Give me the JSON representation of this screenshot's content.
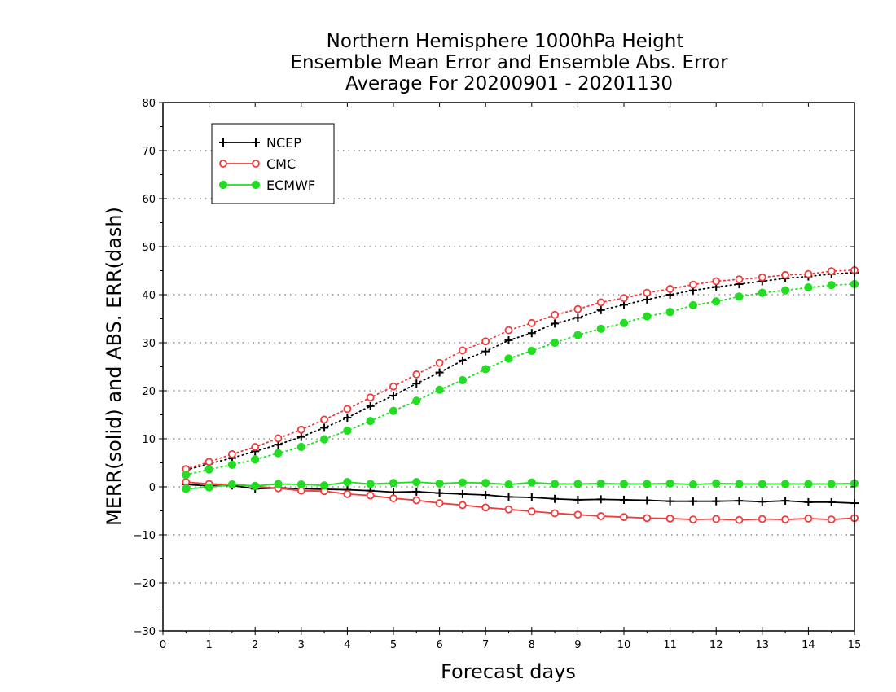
{
  "chart_data": {
    "type": "line",
    "title_lines": [
      "Northern Hemisphere 1000hPa Height",
      "Ensemble Mean Error and Ensemble Abs. Error",
      "Average For 20200901 - 20201130"
    ],
    "xlabel": "Forecast days",
    "ylabel": "MERR(solid) and ABS. ERR(dash)",
    "xlim": [
      0,
      15
    ],
    "ylim": [
      -30,
      80
    ],
    "xticks": [
      0,
      1,
      2,
      3,
      4,
      5,
      6,
      7,
      8,
      9,
      10,
      11,
      12,
      13,
      14,
      15
    ],
    "yticks": [
      -30,
      -20,
      -10,
      0,
      10,
      20,
      30,
      40,
      50,
      60,
      70,
      80
    ],
    "xtick_labels": [
      "0",
      "1",
      "2",
      "3",
      "4",
      "5",
      "6",
      "7",
      "8",
      "9",
      "10",
      "11",
      "12",
      "13",
      "14",
      "15"
    ],
    "ytick_labels": [
      "−30",
      "−20",
      "−10",
      "0",
      "10",
      "20",
      "30",
      "40",
      "50",
      "60",
      "70",
      "80"
    ],
    "grid": "horizontal dotted",
    "legend_position": "top-left",
    "x": [
      0.5,
      1.0,
      1.5,
      2.0,
      2.5,
      3.0,
      3.5,
      4.0,
      4.5,
      5.0,
      5.5,
      6.0,
      6.5,
      7.0,
      7.5,
      8.0,
      8.5,
      9.0,
      9.5,
      10.0,
      10.5,
      11.0,
      11.5,
      12.0,
      12.5,
      13.0,
      13.5,
      14.0,
      14.5,
      15.0
    ],
    "series": [
      {
        "name": "NCEP",
        "color": "#000000",
        "marker": "plus",
        "abs_error": [
          3.5,
          4.8,
          6.0,
          7.4,
          8.8,
          10.4,
          12.3,
          14.4,
          16.8,
          19.0,
          21.5,
          23.8,
          26.3,
          28.2,
          30.5,
          32.0,
          34.0,
          35.2,
          36.8,
          37.9,
          39.0,
          40.0,
          40.9,
          41.6,
          42.2,
          42.8,
          43.4,
          43.8,
          44.3,
          44.6
        ],
        "mean_error": [
          0.5,
          0.2,
          0.3,
          -0.4,
          -0.2,
          -0.4,
          -0.5,
          -0.6,
          -0.8,
          -1.1,
          -1.0,
          -1.3,
          -1.5,
          -1.7,
          -2.1,
          -2.2,
          -2.5,
          -2.7,
          -2.6,
          -2.7,
          -2.8,
          -3.0,
          -3.0,
          -3.0,
          -2.9,
          -3.1,
          -2.9,
          -3.2,
          -3.2,
          -3.4
        ]
      },
      {
        "name": "CMC",
        "color": "#ee3b3b",
        "marker": "open-circle",
        "abs_error": [
          3.7,
          5.2,
          6.8,
          8.3,
          10.1,
          11.9,
          14.0,
          16.2,
          18.6,
          20.9,
          23.4,
          25.8,
          28.4,
          30.3,
          32.6,
          34.1,
          35.8,
          37.0,
          38.4,
          39.3,
          40.4,
          41.2,
          42.1,
          42.8,
          43.2,
          43.6,
          44.1,
          44.3,
          44.9,
          45.1
        ],
        "mean_error": [
          1.0,
          0.6,
          0.5,
          0.1,
          -0.3,
          -0.8,
          -0.9,
          -1.5,
          -1.8,
          -2.4,
          -2.8,
          -3.4,
          -3.8,
          -4.3,
          -4.7,
          -5.1,
          -5.5,
          -5.8,
          -6.1,
          -6.3,
          -6.5,
          -6.6,
          -6.8,
          -6.7,
          -6.9,
          -6.7,
          -6.8,
          -6.6,
          -6.8,
          -6.5
        ]
      },
      {
        "name": "ECMWF",
        "color": "#22dd22",
        "marker": "filled-circle",
        "abs_error": [
          2.5,
          3.6,
          4.6,
          5.7,
          7.0,
          8.3,
          9.9,
          11.7,
          13.7,
          15.8,
          17.9,
          20.2,
          22.2,
          24.5,
          26.7,
          28.3,
          30.0,
          31.6,
          32.9,
          34.1,
          35.5,
          36.4,
          37.8,
          38.6,
          39.6,
          40.4,
          40.9,
          41.5,
          42.0,
          42.2
        ],
        "mean_error": [
          -0.4,
          -0.1,
          0.5,
          0.2,
          0.6,
          0.5,
          0.3,
          1.0,
          0.6,
          0.8,
          1.0,
          0.7,
          0.9,
          0.8,
          0.5,
          0.9,
          0.6,
          0.6,
          0.7,
          0.6,
          0.6,
          0.7,
          0.5,
          0.7,
          0.6,
          0.6,
          0.6,
          0.6,
          0.6,
          0.7
        ]
      }
    ]
  }
}
